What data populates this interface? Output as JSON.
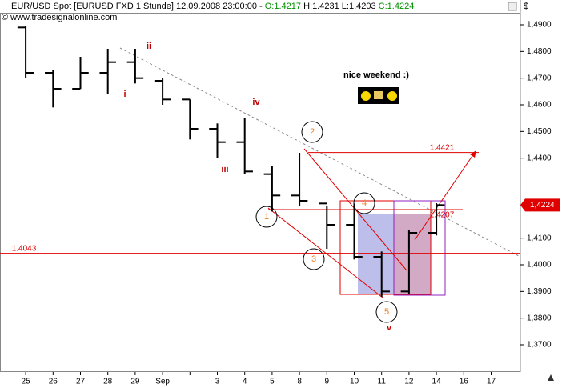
{
  "chart_data": {
    "type": "ohlc",
    "header": {
      "instrument": "EUR/USD Spot [EURUSD FXD  1 Stunde] 12.09.2008 23:00:00 -",
      "open": "O:1.4217",
      "high": "H:1.4231",
      "low": "L:1.4203",
      "close": "C:1.4224"
    },
    "copyright": "© www.tradesignalonline.com",
    "currency": "$",
    "categories": [
      "25",
      "26",
      "27",
      "28",
      "29",
      "Sep",
      null,
      "3",
      "4",
      "5",
      "8",
      "9",
      "10",
      "11",
      "12",
      "14",
      "16",
      "17"
    ],
    "open": [
      1.489,
      1.472,
      1.466,
      1.472,
      1.476,
      1.469,
      1.462,
      1.451,
      1.446,
      1.434,
      1.426,
      1.423,
      1.415,
      1.403,
      1.39,
      1.412,
      null,
      null
    ],
    "high": [
      1.4895,
      1.473,
      1.478,
      1.481,
      1.481,
      1.47,
      1.462,
      1.453,
      1.455,
      1.437,
      1.442,
      1.422,
      1.423,
      1.405,
      1.413,
      1.4231,
      null,
      null
    ],
    "low": [
      1.47,
      1.459,
      1.466,
      1.464,
      1.468,
      1.46,
      1.447,
      1.44,
      1.434,
      1.42,
      1.422,
      1.406,
      1.402,
      1.388,
      1.389,
      1.411,
      null,
      null
    ],
    "close": [
      1.472,
      1.466,
      1.472,
      1.476,
      1.47,
      1.462,
      1.451,
      1.446,
      1.435,
      1.426,
      1.424,
      1.415,
      1.403,
      1.39,
      1.412,
      1.4224,
      null,
      null
    ],
    "color": "#000000",
    "ylim": [
      1.3598,
      1.4945
    ],
    "yticks": [
      {
        "value": 1.49,
        "label": "1,4900"
      },
      {
        "value": 1.48,
        "label": "1,4800"
      },
      {
        "value": 1.47,
        "label": "1,4700"
      },
      {
        "value": 1.46,
        "label": "1,4600"
      },
      {
        "value": 1.45,
        "label": "1,4500"
      },
      {
        "value": 1.44,
        "label": "1,4400"
      },
      {
        "value": 1.41,
        "label": "1,4100"
      },
      {
        "value": 1.4,
        "label": "1,4000"
      },
      {
        "value": 1.39,
        "label": "1,3900"
      },
      {
        "value": 1.38,
        "label": "1,3800"
      },
      {
        "value": 1.37,
        "label": "1,3700"
      }
    ],
    "last_price": {
      "value": 1.4224,
      "label": "1,4224"
    },
    "levels": [
      1.4421,
      1.4207,
      1.4043
    ],
    "level_color": "#e00000",
    "wave_labels": [
      "i",
      "ii",
      "iii",
      "iv",
      "v"
    ],
    "count_labels": [
      "1",
      "2",
      "3",
      "4",
      "5"
    ],
    "note": "nice weekend   :)"
  }
}
